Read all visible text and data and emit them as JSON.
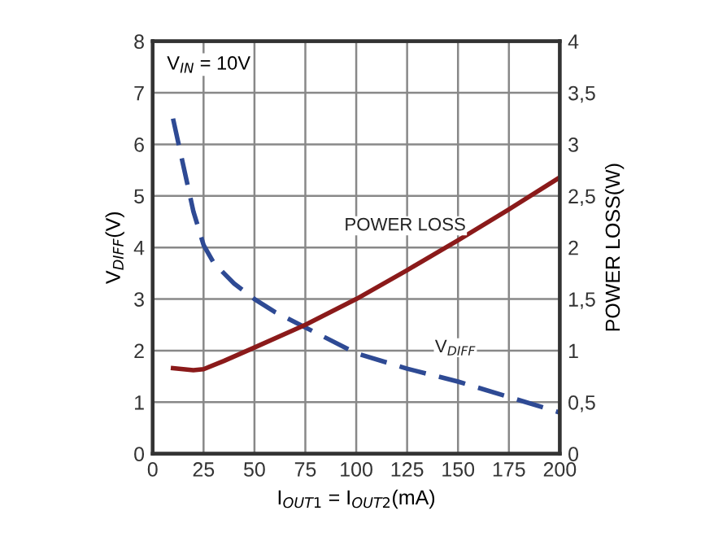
{
  "chart_data": {
    "type": "line",
    "xlabel": "I$_{OUT1}$ = I$_{OUT2}$(mA)",
    "ylabel": "V$_{DIFF}$(V)",
    "y2label": "POWER LOSS(W)",
    "annotations": [
      "V$_{IN}$ = 10V"
    ],
    "xlim": [
      0,
      200
    ],
    "xticks": [
      0,
      25,
      50,
      75,
      100,
      125,
      150,
      175,
      200
    ],
    "ylim": [
      0,
      8
    ],
    "yticks": [
      0,
      1,
      2,
      3,
      4,
      5,
      6,
      7,
      8
    ],
    "y2lim": [
      0,
      4
    ],
    "y2ticks": [
      0,
      {
        "value": 0.5,
        "label": "0,5"
      },
      1,
      {
        "value": 1.5,
        "label": "1,5"
      },
      2,
      {
        "value": 2.5,
        "label": "2,5"
      },
      3,
      {
        "value": 3.5,
        "label": "3,5"
      },
      4
    ],
    "grid": true,
    "legend": false,
    "marker": "none",
    "series": [
      {
        "name": "V$_{DIFF}$",
        "color": "#2e4a94",
        "line_style": "dashed",
        "x": [
          10,
          15,
          20,
          25,
          30,
          40,
          50,
          60,
          75,
          100,
          125,
          150,
          175,
          200
        ],
        "values": [
          6.5,
          5.6,
          4.7,
          4.05,
          3.7,
          3.3,
          3.0,
          2.75,
          2.45,
          1.95,
          1.65,
          1.4,
          1.1,
          0.8
        ]
      },
      {
        "name": "POWER LOSS",
        "color": "#8b1a1a",
        "line_style": "solid",
        "axis": "y2",
        "x": [
          10,
          20,
          25,
          35,
          50,
          75,
          100,
          125,
          150,
          175,
          200
        ],
        "values": [
          0.83,
          0.81,
          0.82,
          0.9,
          1.03,
          1.25,
          1.5,
          1.78,
          2.07,
          2.37,
          2.68
        ]
      }
    ]
  }
}
